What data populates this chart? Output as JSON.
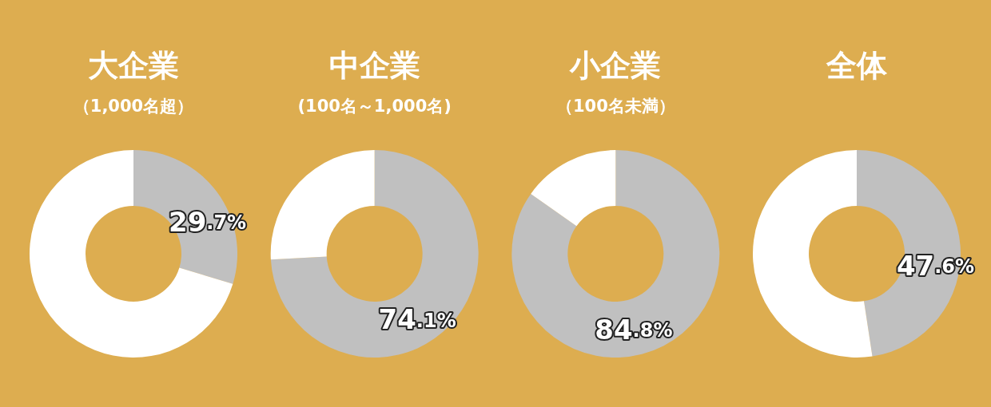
{
  "chart_data": [
    {
      "type": "donut",
      "title": "大企業",
      "subtitle": "（1,000名超）",
      "categories": [
        null,
        null
      ],
      "values": [
        29.7,
        70.3
      ],
      "colors": [
        "#c0c0c0",
        "#ffffff"
      ],
      "value_labels": [
        "29.7%",
        null
      ]
    },
    {
      "type": "donut",
      "title": "中企業",
      "subtitle": "(100名～1,000名)",
      "categories": [
        null,
        null
      ],
      "values": [
        74.1,
        25.9
      ],
      "colors": [
        "#c0c0c0",
        "#ffffff"
      ],
      "value_labels": [
        "74.1%",
        null
      ]
    },
    {
      "type": "donut",
      "title": "小企業",
      "subtitle": "（100名未満）",
      "categories": [
        null,
        null
      ],
      "values": [
        84.8,
        15.2
      ],
      "colors": [
        "#c0c0c0",
        "#ffffff"
      ],
      "value_labels": [
        "84.8%",
        null
      ]
    },
    {
      "type": "donut",
      "title": "全体",
      "categories": [
        null,
        null
      ],
      "values": [
        47.6,
        52.4
      ],
      "colors": [
        "#c0c0c0",
        "#ffffff"
      ],
      "value_labels": [
        "47.6%",
        null
      ]
    }
  ]
}
